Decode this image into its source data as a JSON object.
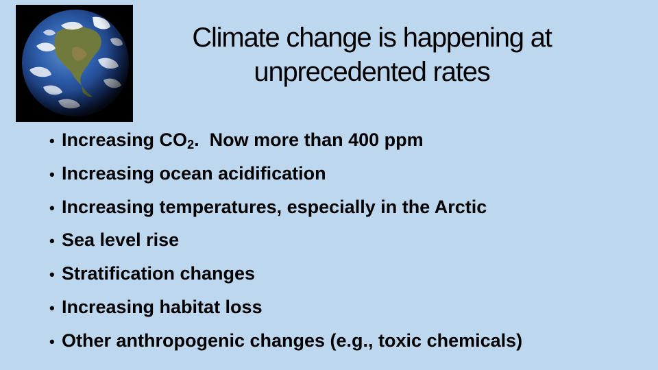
{
  "slide": {
    "title_line1": "Climate change is happening at",
    "title_line2": "unprecedented rates",
    "image": {
      "icon": "earth-globe-icon"
    },
    "bullet_marker": "•",
    "bullets": [
      {
        "text": "Increasing CO",
        "sub": "2",
        "tail": ".  Now more than 400 ppm"
      },
      {
        "text": "Increasing ocean acidification"
      },
      {
        "text": "Increasing temperatures, especially in the Arctic"
      },
      {
        "text": "Sea level rise"
      },
      {
        "text": "Stratification changes"
      },
      {
        "text": "Increasing habitat loss"
      },
      {
        "text": "Other anthropogenic changes (e.g., toxic chemicals)"
      }
    ],
    "colors": {
      "background": "#bdd7ee",
      "text": "#000000"
    }
  }
}
